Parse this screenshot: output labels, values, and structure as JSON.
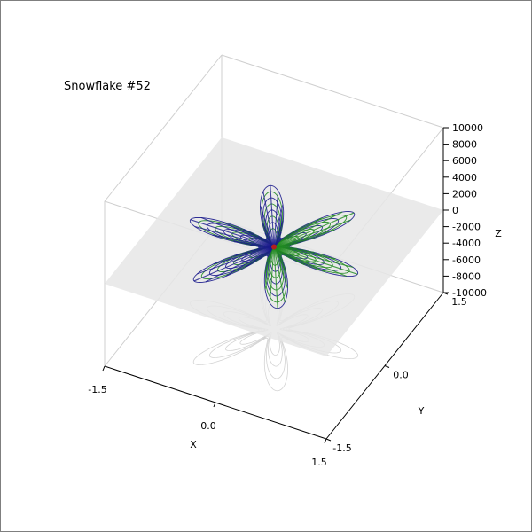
{
  "figure": {
    "title": "Snowflake #52"
  },
  "colors": {
    "arms_blue": "#1a1a8c",
    "arms_green": "#1f8a1f",
    "center_red": "#b02020",
    "plane": "#e6e6e6",
    "shadow": "#c8c8c8",
    "box": "#cfcfcf",
    "axis": "#000000"
  },
  "chart_data": {
    "type": "scatter",
    "title": "Snowflake #52",
    "xlabel": "X",
    "ylabel": "Y",
    "zlabel": "Z",
    "xlim": [
      -1.5,
      1.5
    ],
    "ylim": [
      -1.5,
      1.5
    ],
    "zlim": [
      -10000,
      10000
    ],
    "x_ticks": [
      "-1.5",
      "0.0",
      "1.5"
    ],
    "y_ticks": [
      "-1.5",
      "0.0",
      "1.5"
    ],
    "z_ticks": [
      "-10000",
      "-8000",
      "-6000",
      "-4000",
      "-2000",
      "0",
      "2000",
      "4000",
      "6000",
      "8000",
      "10000"
    ],
    "grid": false,
    "surface_plane_z": 0,
    "arms": 6,
    "series": [
      {
        "color": "#1a1a8c"
      },
      {
        "color": "#1f8a1f"
      }
    ]
  }
}
